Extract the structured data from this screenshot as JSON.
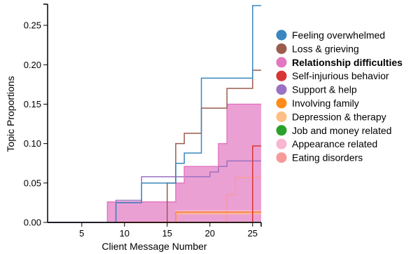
{
  "chart_data": {
    "type": "line",
    "xlabel": "Client Message Number",
    "ylabel": "Topic Proportions",
    "xlim": [
      1,
      26
    ],
    "ylim": [
      0,
      0.275
    ],
    "x_ticks": [
      5,
      10,
      15,
      20,
      25
    ],
    "y_ticks": [
      0.0,
      0.05,
      0.1,
      0.15,
      0.2,
      0.25
    ],
    "y_tick_labels": [
      "0.00",
      "0.05",
      "0.10",
      "0.15",
      "0.20",
      "0.25"
    ],
    "grid": false,
    "legend_position": "right",
    "highlighted_series": "Relationship difficulties",
    "x": [
      1,
      2,
      3,
      4,
      5,
      6,
      7,
      8,
      9,
      10,
      11,
      12,
      13,
      14,
      15,
      16,
      17,
      18,
      19,
      20,
      21,
      22,
      23,
      24,
      25,
      26
    ],
    "series": [
      {
        "name": "Feeling overwhelmed",
        "color": "#3a87bf",
        "values": [
          0,
          0,
          0,
          0,
          0,
          0,
          0,
          0,
          0.025,
          0.025,
          0.025,
          0.05,
          0.05,
          0.05,
          0.05,
          0.075,
          0.088,
          0.088,
          0.183,
          0.183,
          0.183,
          0.183,
          0.183,
          0.183,
          0.275,
          0.275
        ]
      },
      {
        "name": "Loss & grieving",
        "color": "#9b5b4d",
        "values": [
          0,
          0,
          0,
          0,
          0,
          0,
          0,
          0,
          0,
          0,
          0,
          0,
          0,
          0,
          0.05,
          0.1,
          0.113,
          0.113,
          0.145,
          0.145,
          0.145,
          0.17,
          0.17,
          0.17,
          0.193,
          0.193
        ]
      },
      {
        "name": "Relationship difficulties",
        "color": "#e377c2",
        "values": [
          0,
          0,
          0,
          0,
          0,
          0,
          0,
          0.026,
          0.026,
          0.026,
          0.026,
          0.026,
          0.026,
          0.026,
          0.026,
          0.05,
          0.071,
          0.071,
          0.071,
          0.071,
          0.1,
          0.15,
          0.15,
          0.15,
          0.15,
          0.15
        ]
      },
      {
        "name": "Self-injurious behavior",
        "color": "#d83535",
        "values": [
          0,
          0,
          0,
          0,
          0,
          0,
          0,
          0,
          0,
          0,
          0,
          0,
          0,
          0,
          0,
          0,
          0,
          0,
          0,
          0,
          0,
          0,
          0,
          0,
          0.097,
          0.097
        ]
      },
      {
        "name": "Support & help",
        "color": "#9a72c1",
        "values": [
          0,
          0,
          0,
          0,
          0,
          0,
          0,
          0,
          0.028,
          0.028,
          0.028,
          0.058,
          0.058,
          0.058,
          0.058,
          0.058,
          0.058,
          0.058,
          0.058,
          0.064,
          0.071,
          0.078,
          0.078,
          0.078,
          0.078,
          0.078
        ]
      },
      {
        "name": "Involving family",
        "color": "#ff8c1a",
        "values": [
          0,
          0,
          0,
          0,
          0,
          0,
          0,
          0,
          0,
          0,
          0,
          0,
          0,
          0,
          0,
          0.013,
          0.013,
          0.013,
          0.013,
          0.013,
          0.013,
          0.013,
          0.013,
          0.013,
          0.013,
          0.013
        ]
      },
      {
        "name": "Depression & therapy",
        "color": "#fdbf85",
        "values": [
          0,
          0,
          0,
          0,
          0,
          0,
          0,
          0,
          0,
          0,
          0,
          0,
          0,
          0,
          0,
          0.011,
          0.011,
          0.011,
          0.011,
          0.011,
          0.011,
          0.011,
          0.011,
          0.011,
          0.011,
          0.011
        ]
      },
      {
        "name": "Job and money related",
        "color": "#2ca02c",
        "values": [
          0,
          0,
          0,
          0,
          0,
          0,
          0,
          0,
          0,
          0,
          0,
          0,
          0,
          0,
          0,
          0,
          0,
          0,
          0,
          0,
          0,
          0,
          0,
          0,
          0,
          0
        ]
      },
      {
        "name": "Appearance related",
        "color": "#f7b6d2",
        "values": [
          0,
          0,
          0,
          0,
          0,
          0,
          0,
          0,
          0,
          0,
          0,
          0,
          0,
          0,
          0,
          0.015,
          0.015,
          0.015,
          0.015,
          0.015,
          0.015,
          0.015,
          0.015,
          0.015,
          0.015,
          0.015
        ]
      },
      {
        "name": "Eating disorders",
        "color": "#f89a9a",
        "values": [
          0,
          0,
          0,
          0,
          0,
          0,
          0,
          0,
          0,
          0,
          0,
          0,
          0,
          0,
          0,
          0,
          0,
          0,
          0,
          0,
          0,
          0.035,
          0.057,
          0.057,
          0.057,
          0.057
        ]
      }
    ]
  }
}
